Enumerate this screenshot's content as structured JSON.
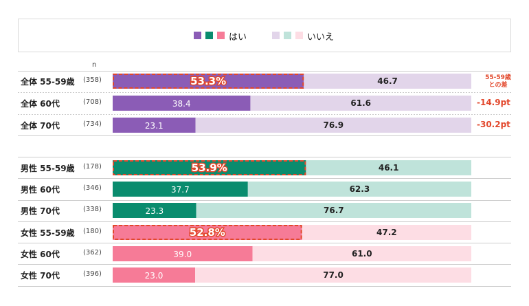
{
  "legend": {
    "yes_label": "はい",
    "no_label": "いいえ",
    "yes_colors": [
      "#8b5cb6",
      "#0a8c6e",
      "#f67b97"
    ],
    "no_colors": [
      "#e2d5ea",
      "#bfe3da",
      "#fddde4"
    ]
  },
  "n_header": "n",
  "diff_header": [
    "55-59歳",
    "との差"
  ],
  "chart_data": {
    "type": "bar",
    "orientation": "horizontal",
    "stacked": true,
    "xlim": [
      0,
      100
    ],
    "series_names": [
      "はい",
      "いいえ"
    ],
    "rows": [
      {
        "label": "全体  55-59歳",
        "n": "(358)",
        "yes": 53.3,
        "no": 46.7,
        "yes_text": "53.3%",
        "no_text": "46.7",
        "group": 0,
        "highlight": true,
        "diff": ""
      },
      {
        "label": "全体  60代",
        "n": "(708)",
        "yes": 38.4,
        "no": 61.6,
        "yes_text": "38.4",
        "no_text": "61.6",
        "group": 0,
        "highlight": false,
        "diff": "-14.9pt"
      },
      {
        "label": "全体  70代",
        "n": "(734)",
        "yes": 23.1,
        "no": 76.9,
        "yes_text": "23.1",
        "no_text": "76.9",
        "group": 0,
        "highlight": false,
        "diff": "-30.2pt"
      },
      {
        "label": "男性  55-59歳",
        "n": "(178)",
        "yes": 53.9,
        "no": 46.1,
        "yes_text": "53.9%",
        "no_text": "46.1",
        "group": 1,
        "highlight": true,
        "diff": ""
      },
      {
        "label": "男性  60代",
        "n": "(346)",
        "yes": 37.7,
        "no": 62.3,
        "yes_text": "37.7",
        "no_text": "62.3",
        "group": 1,
        "highlight": false,
        "diff": ""
      },
      {
        "label": "男性  70代",
        "n": "(338)",
        "yes": 23.3,
        "no": 76.7,
        "yes_text": "23.3",
        "no_text": "76.7",
        "group": 1,
        "highlight": false,
        "diff": ""
      },
      {
        "label": "女性  55-59歳",
        "n": "(180)",
        "yes": 52.8,
        "no": 47.2,
        "yes_text": "52.8%",
        "no_text": "47.2",
        "group": 2,
        "highlight": true,
        "diff": ""
      },
      {
        "label": "女性  60代",
        "n": "(362)",
        "yes": 39.0,
        "no": 61.0,
        "yes_text": "39.0",
        "no_text": "61.0",
        "group": 2,
        "highlight": false,
        "diff": ""
      },
      {
        "label": "女性  70代",
        "n": "(396)",
        "yes": 23.0,
        "no": 77.0,
        "yes_text": "23.0",
        "no_text": "77.0",
        "group": 2,
        "highlight": false,
        "diff": ""
      }
    ]
  }
}
